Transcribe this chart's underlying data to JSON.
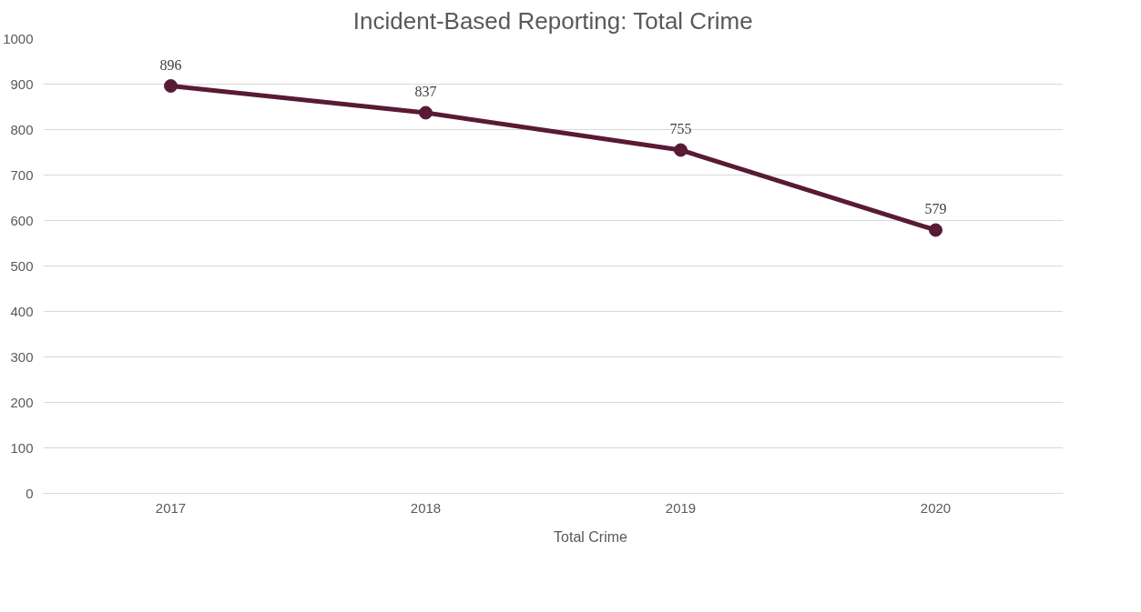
{
  "chart_data": {
    "type": "line",
    "title": "Incident-Based Reporting: Total Crime",
    "categories": [
      "2017",
      "2018",
      "2019",
      "2020"
    ],
    "series": [
      {
        "name": "Total Crime",
        "color": "#581a35",
        "values": [
          896,
          837,
          755,
          579
        ]
      }
    ],
    "ylim": [
      0,
      1000
    ],
    "yticks": [
      0,
      100,
      200,
      300,
      400,
      500,
      600,
      700,
      800,
      900,
      1000
    ],
    "grid": "y",
    "legend": "bottom",
    "data_labels": true,
    "marker": "circle",
    "line_style": "solid"
  }
}
